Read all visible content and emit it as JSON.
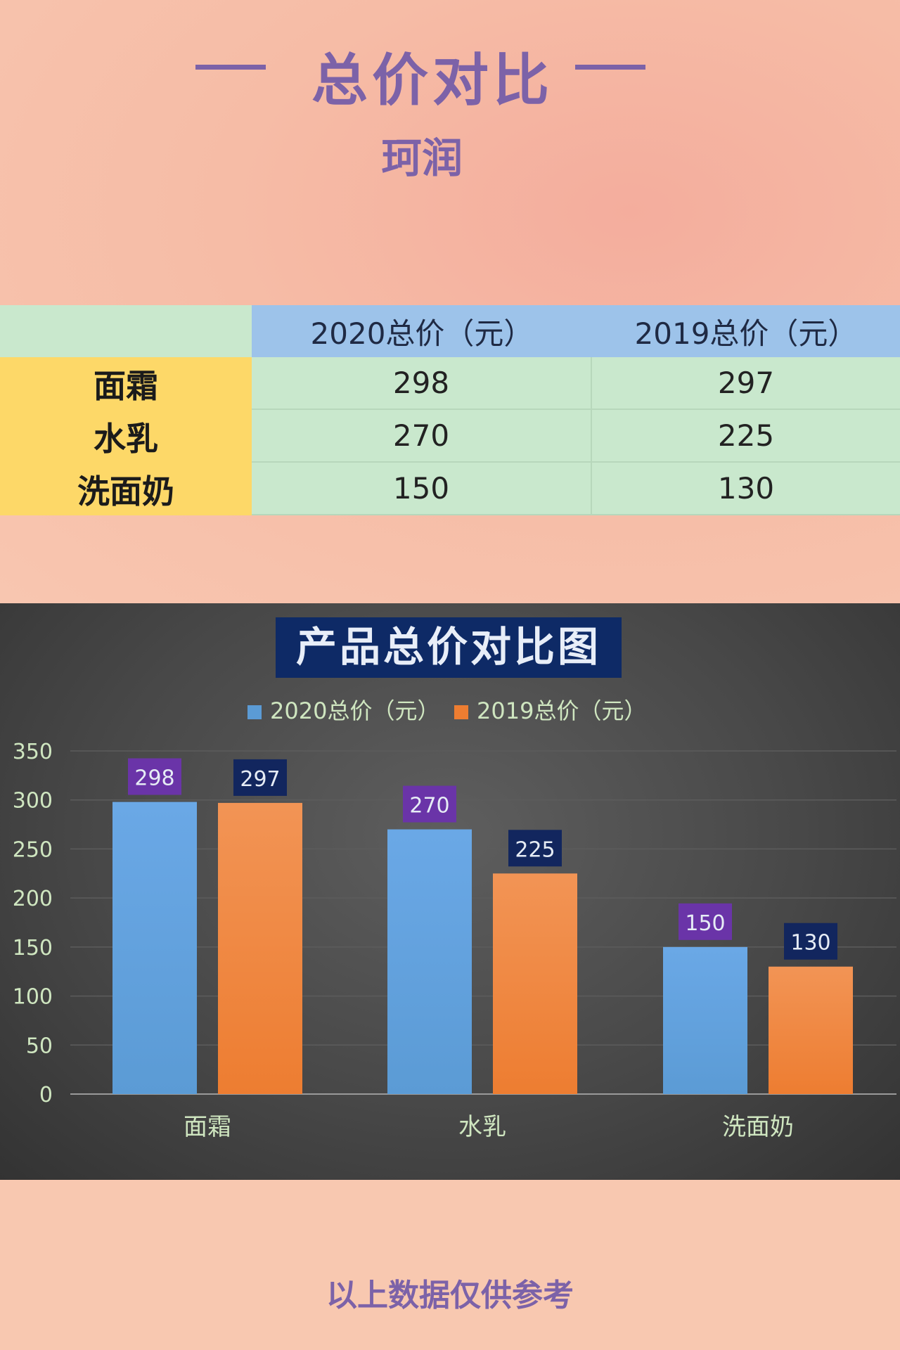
{
  "header": {
    "title": "总价对比",
    "brand": "珂润"
  },
  "table": {
    "columns": [
      "2020总价（元）",
      "2019总价（元）"
    ],
    "rows": [
      {
        "label": "面霜",
        "values": [
          "298",
          "297"
        ]
      },
      {
        "label": "水乳",
        "values": [
          "270",
          "225"
        ]
      },
      {
        "label": "洗面奶",
        "values": [
          "150",
          "130"
        ]
      }
    ]
  },
  "colors": {
    "series_2020": "#5b9bd5",
    "series_2019": "#ed7d31",
    "label_2020_bg": "#6a34a8",
    "label_2019_bg": "#12265e",
    "title_bg": "#0e2a66",
    "axis_text": "#cfe6c0"
  },
  "chart_data": {
    "type": "bar",
    "title": "产品总价对比图",
    "categories": [
      "面霜",
      "水乳",
      "洗面奶"
    ],
    "series": [
      {
        "name": "2020总价（元）",
        "values": [
          298,
          270,
          150
        ]
      },
      {
        "name": "2019总价（元）",
        "values": [
          297,
          225,
          130
        ]
      }
    ],
    "ylim": [
      0,
      350
    ],
    "yticks": [
      0,
      50,
      100,
      150,
      200,
      250,
      300,
      350
    ],
    "grid": true,
    "legend": "top-center",
    "xlabel": "",
    "ylabel": ""
  },
  "footer": {
    "note": "以上数据仅供参考"
  }
}
